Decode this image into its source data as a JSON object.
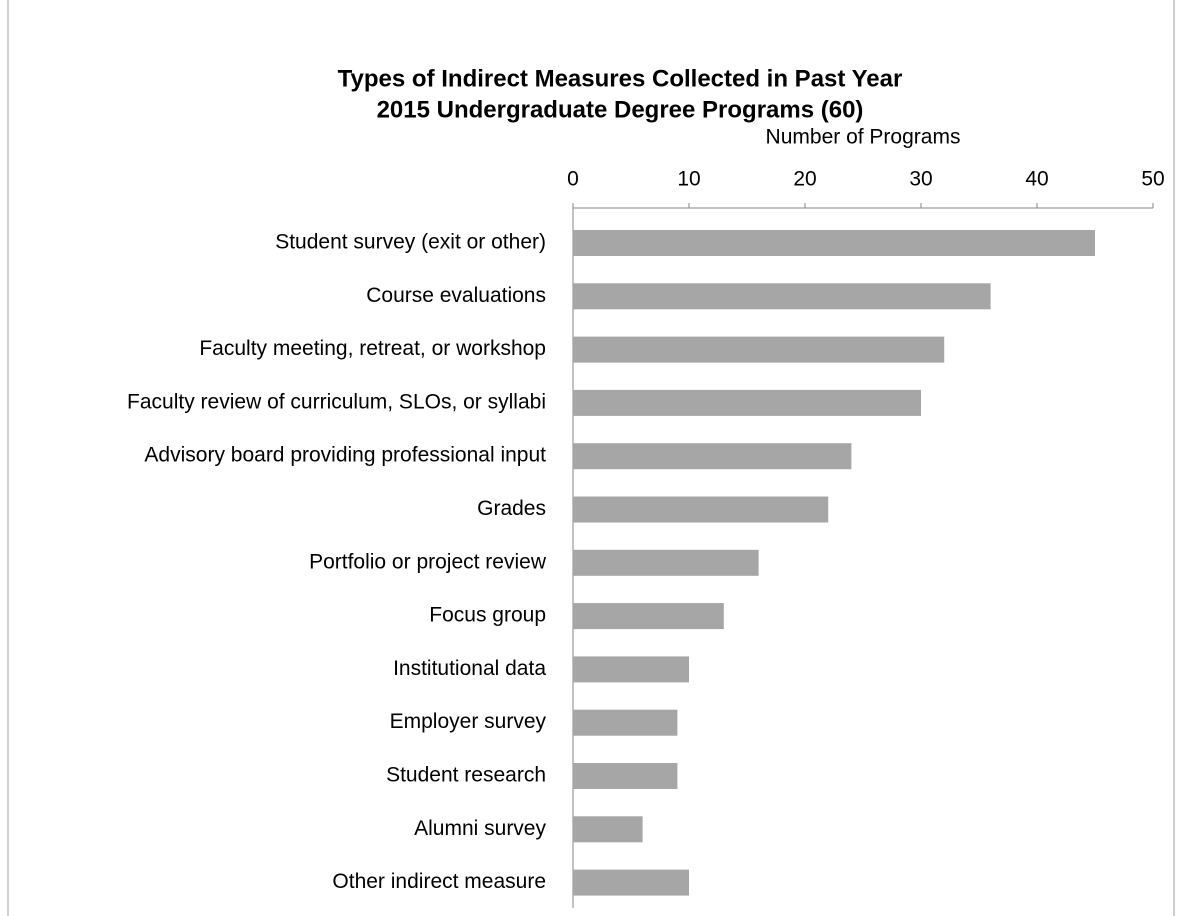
{
  "chart_data": {
    "type": "bar",
    "orientation": "horizontal",
    "title": "Types of Indirect Measures Collected in Past Year",
    "subtitle": "2015 Undergraduate Degree Programs (60)",
    "x_label": "Number of Programs",
    "categories": [
      "Student survey (exit or other)",
      "Course evaluations",
      "Faculty meeting, retreat, or workshop",
      "Faculty review of curriculum, SLOs, or syllabi",
      "Advisory board providing professional input",
      "Grades",
      "Portfolio or project review",
      "Focus group",
      "Institutional data",
      "Employer survey",
      "Student research",
      "Alumni survey",
      "Other indirect measure"
    ],
    "values": [
      45,
      36,
      32,
      30,
      24,
      22,
      16,
      13,
      10,
      9,
      9,
      6,
      10
    ],
    "color": "#a6a6a6",
    "xlim": [
      0,
      50
    ],
    "xticks": [
      0,
      10,
      20,
      30,
      40,
      50
    ],
    "grid": false
  }
}
